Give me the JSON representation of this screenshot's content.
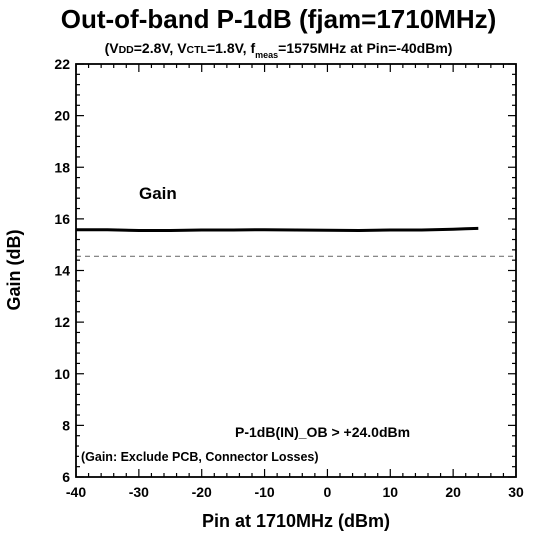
{
  "chart_data": {
    "type": "line",
    "title": "Out-of-band P-1dB (fjam=1710MHz)",
    "subtitle": {
      "p1": "(V",
      "p2": "DD",
      "p3": "=2.8V,  V",
      "p4": "CTL",
      "p5": "=1.8V, f",
      "p6": "meas",
      "p7": "=1575MHz at Pin=-40dBm)"
    },
    "xlabel": "Pin at 1710MHz (dBm)",
    "ylabel": "Gain (dB)",
    "xlim": [
      -40,
      30
    ],
    "ylim": [
      6,
      22
    ],
    "xticks": [
      "-40",
      "-30",
      "-20",
      "-10",
      "0",
      "10",
      "20",
      "30"
    ],
    "yticks": [
      "6",
      "8",
      "10",
      "12",
      "14",
      "16",
      "18",
      "20",
      "22"
    ],
    "grid": false,
    "series": [
      {
        "name": "Gain",
        "color": "#000000",
        "x": [
          -40,
          -35,
          -30,
          -25,
          -20,
          -15,
          -10,
          -5,
          0,
          5,
          10,
          15,
          20,
          22,
          24
        ],
        "y": [
          15.58,
          15.58,
          15.55,
          15.55,
          15.57,
          15.57,
          15.58,
          15.57,
          15.56,
          15.55,
          15.57,
          15.57,
          15.6,
          15.62,
          15.63
        ]
      }
    ],
    "reference_line": {
      "y": 14.55,
      "style": "dashed",
      "color": "#777777"
    },
    "annotations": {
      "series_label": "Gain",
      "p1db": "P-1dB(IN)_OB > +24.0dBm",
      "note": "(Gain: Exclude PCB, Connector Losses)"
    }
  }
}
